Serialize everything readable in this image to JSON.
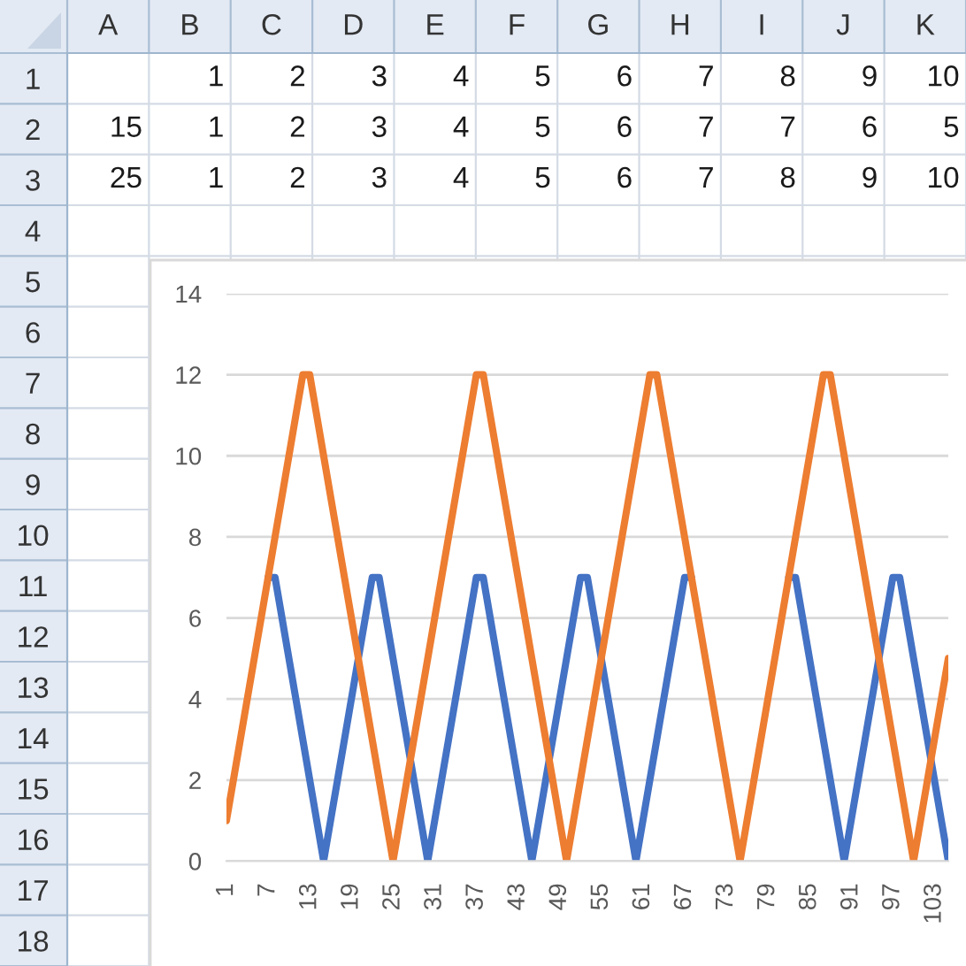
{
  "chart_data": [
    {
      "type": "heatmap",
      "categories": [
        "A",
        "B",
        "C",
        "D",
        "E",
        "F",
        "G",
        "H",
        "I",
        "J",
        "K"
      ],
      "y_categories": [
        "1",
        "2",
        "3",
        "4",
        "5",
        "6",
        "7",
        "8",
        "9",
        "10",
        "11",
        "12",
        "13",
        "14",
        "15",
        "16",
        "17",
        "18"
      ],
      "cells": [
        [
          null,
          1,
          2,
          3,
          4,
          5,
          6,
          7,
          8,
          9,
          10
        ],
        [
          15,
          1,
          2,
          3,
          4,
          5,
          6,
          7,
          7,
          6,
          5
        ],
        [
          25,
          1,
          2,
          3,
          4,
          5,
          6,
          7,
          8,
          9,
          10
        ],
        [
          null,
          null,
          null,
          null,
          null,
          null,
          null,
          null,
          null,
          null,
          null
        ],
        [
          null,
          null,
          null,
          null,
          null,
          null,
          null,
          null,
          null,
          null,
          null
        ],
        [
          null,
          null,
          null,
          null,
          null,
          null,
          null,
          null,
          null,
          null,
          null
        ],
        [
          null,
          null,
          null,
          null,
          null,
          null,
          null,
          null,
          null,
          null,
          null
        ],
        [
          null,
          null,
          null,
          null,
          null,
          null,
          null,
          null,
          null,
          null,
          null
        ],
        [
          null,
          null,
          null,
          null,
          null,
          null,
          null,
          null,
          null,
          null,
          null
        ],
        [
          null,
          null,
          null,
          null,
          null,
          null,
          null,
          null,
          null,
          null,
          null
        ],
        [
          null,
          null,
          null,
          null,
          null,
          null,
          null,
          null,
          null,
          null,
          null
        ],
        [
          null,
          null,
          null,
          null,
          null,
          null,
          null,
          null,
          null,
          null,
          null
        ],
        [
          null,
          null,
          null,
          null,
          null,
          null,
          null,
          null,
          null,
          null,
          null
        ],
        [
          null,
          null,
          null,
          null,
          null,
          null,
          null,
          null,
          null,
          null,
          null
        ],
        [
          null,
          null,
          null,
          null,
          null,
          null,
          null,
          null,
          null,
          null,
          null
        ],
        [
          null,
          null,
          null,
          null,
          null,
          null,
          null,
          null,
          null,
          null,
          null
        ],
        [
          null,
          null,
          null,
          null,
          null,
          null,
          null,
          null,
          null,
          null,
          null
        ],
        [
          null,
          null,
          null,
          null,
          null,
          null,
          null,
          null,
          null,
          null,
          null
        ]
      ],
      "color": "#ffffff",
      "grid": true,
      "data_labels": true
    },
    {
      "type": "line",
      "categories": [
        "1",
        null,
        null,
        null,
        null,
        null,
        "7",
        null,
        null,
        null,
        null,
        null,
        "13",
        null,
        null,
        null,
        null,
        null,
        "19",
        null,
        null,
        null,
        null,
        null,
        "25",
        null,
        null,
        null,
        null,
        null,
        "31",
        null,
        null,
        null,
        null,
        null,
        "37",
        null,
        null,
        null,
        null,
        null,
        "43",
        null,
        null,
        null,
        null,
        null,
        "49",
        null,
        null,
        null,
        null,
        null,
        "55",
        null,
        null,
        null,
        null,
        null,
        "61",
        null,
        null,
        null,
        null,
        null,
        "67",
        null,
        null,
        null,
        null,
        null,
        "73",
        null,
        null,
        null,
        null,
        null,
        "79",
        null,
        null,
        null,
        null,
        null,
        "85",
        null,
        null,
        null,
        null,
        null,
        "91",
        null,
        null,
        null,
        null,
        null,
        "97",
        null,
        null,
        null,
        null,
        null,
        "103",
        null,
        null
      ],
      "series": [
        {
          "color": "#4472c4",
          "values": [
            null,
            null,
            null,
            null,
            null,
            null,
            7,
            7,
            6,
            5,
            4,
            3,
            2,
            1,
            0,
            1,
            2,
            3,
            4,
            5,
            6,
            7,
            7,
            6,
            5,
            4,
            3,
            2,
            1,
            0,
            1,
            2,
            3,
            4,
            5,
            6,
            7,
            7,
            6,
            5,
            4,
            3,
            2,
            1,
            0,
            1,
            2,
            3,
            4,
            5,
            6,
            7,
            7,
            6,
            5,
            4,
            3,
            2,
            1,
            0,
            1,
            2,
            3,
            4,
            5,
            6,
            7,
            7,
            null,
            null,
            null,
            null,
            null,
            null,
            null,
            null,
            null,
            null,
            null,
            null,
            null,
            7,
            7,
            6,
            5,
            4,
            3,
            2,
            1,
            0,
            1,
            2,
            3,
            4,
            5,
            6,
            7,
            7,
            6,
            5,
            4,
            3,
            2,
            1,
            0
          ]
        },
        {
          "color": "#ed7d31",
          "values": [
            1,
            2,
            3,
            4,
            5,
            6,
            7,
            8,
            9,
            10,
            11,
            12,
            12,
            11,
            10,
            9,
            8,
            7,
            6,
            5,
            4,
            3,
            2,
            1,
            0,
            1,
            2,
            3,
            4,
            5,
            6,
            7,
            8,
            9,
            10,
            11,
            12,
            12,
            11,
            10,
            9,
            8,
            7,
            6,
            5,
            4,
            3,
            2,
            1,
            0,
            1,
            2,
            3,
            4,
            5,
            6,
            7,
            8,
            9,
            10,
            11,
            12,
            12,
            11,
            10,
            9,
            8,
            7,
            6,
            5,
            4,
            3,
            2,
            1,
            0,
            1,
            2,
            3,
            4,
            5,
            6,
            7,
            8,
            9,
            10,
            11,
            12,
            12,
            11,
            10,
            9,
            8,
            7,
            6,
            5,
            4,
            3,
            2,
            1,
            0,
            1,
            2,
            3,
            4,
            5
          ]
        }
      ],
      "ylim": [
        0,
        14
      ],
      "yticks": [
        0,
        2,
        4,
        6,
        8,
        10,
        12,
        14
      ],
      "grid": "y",
      "line_style": "solid"
    }
  ]
}
